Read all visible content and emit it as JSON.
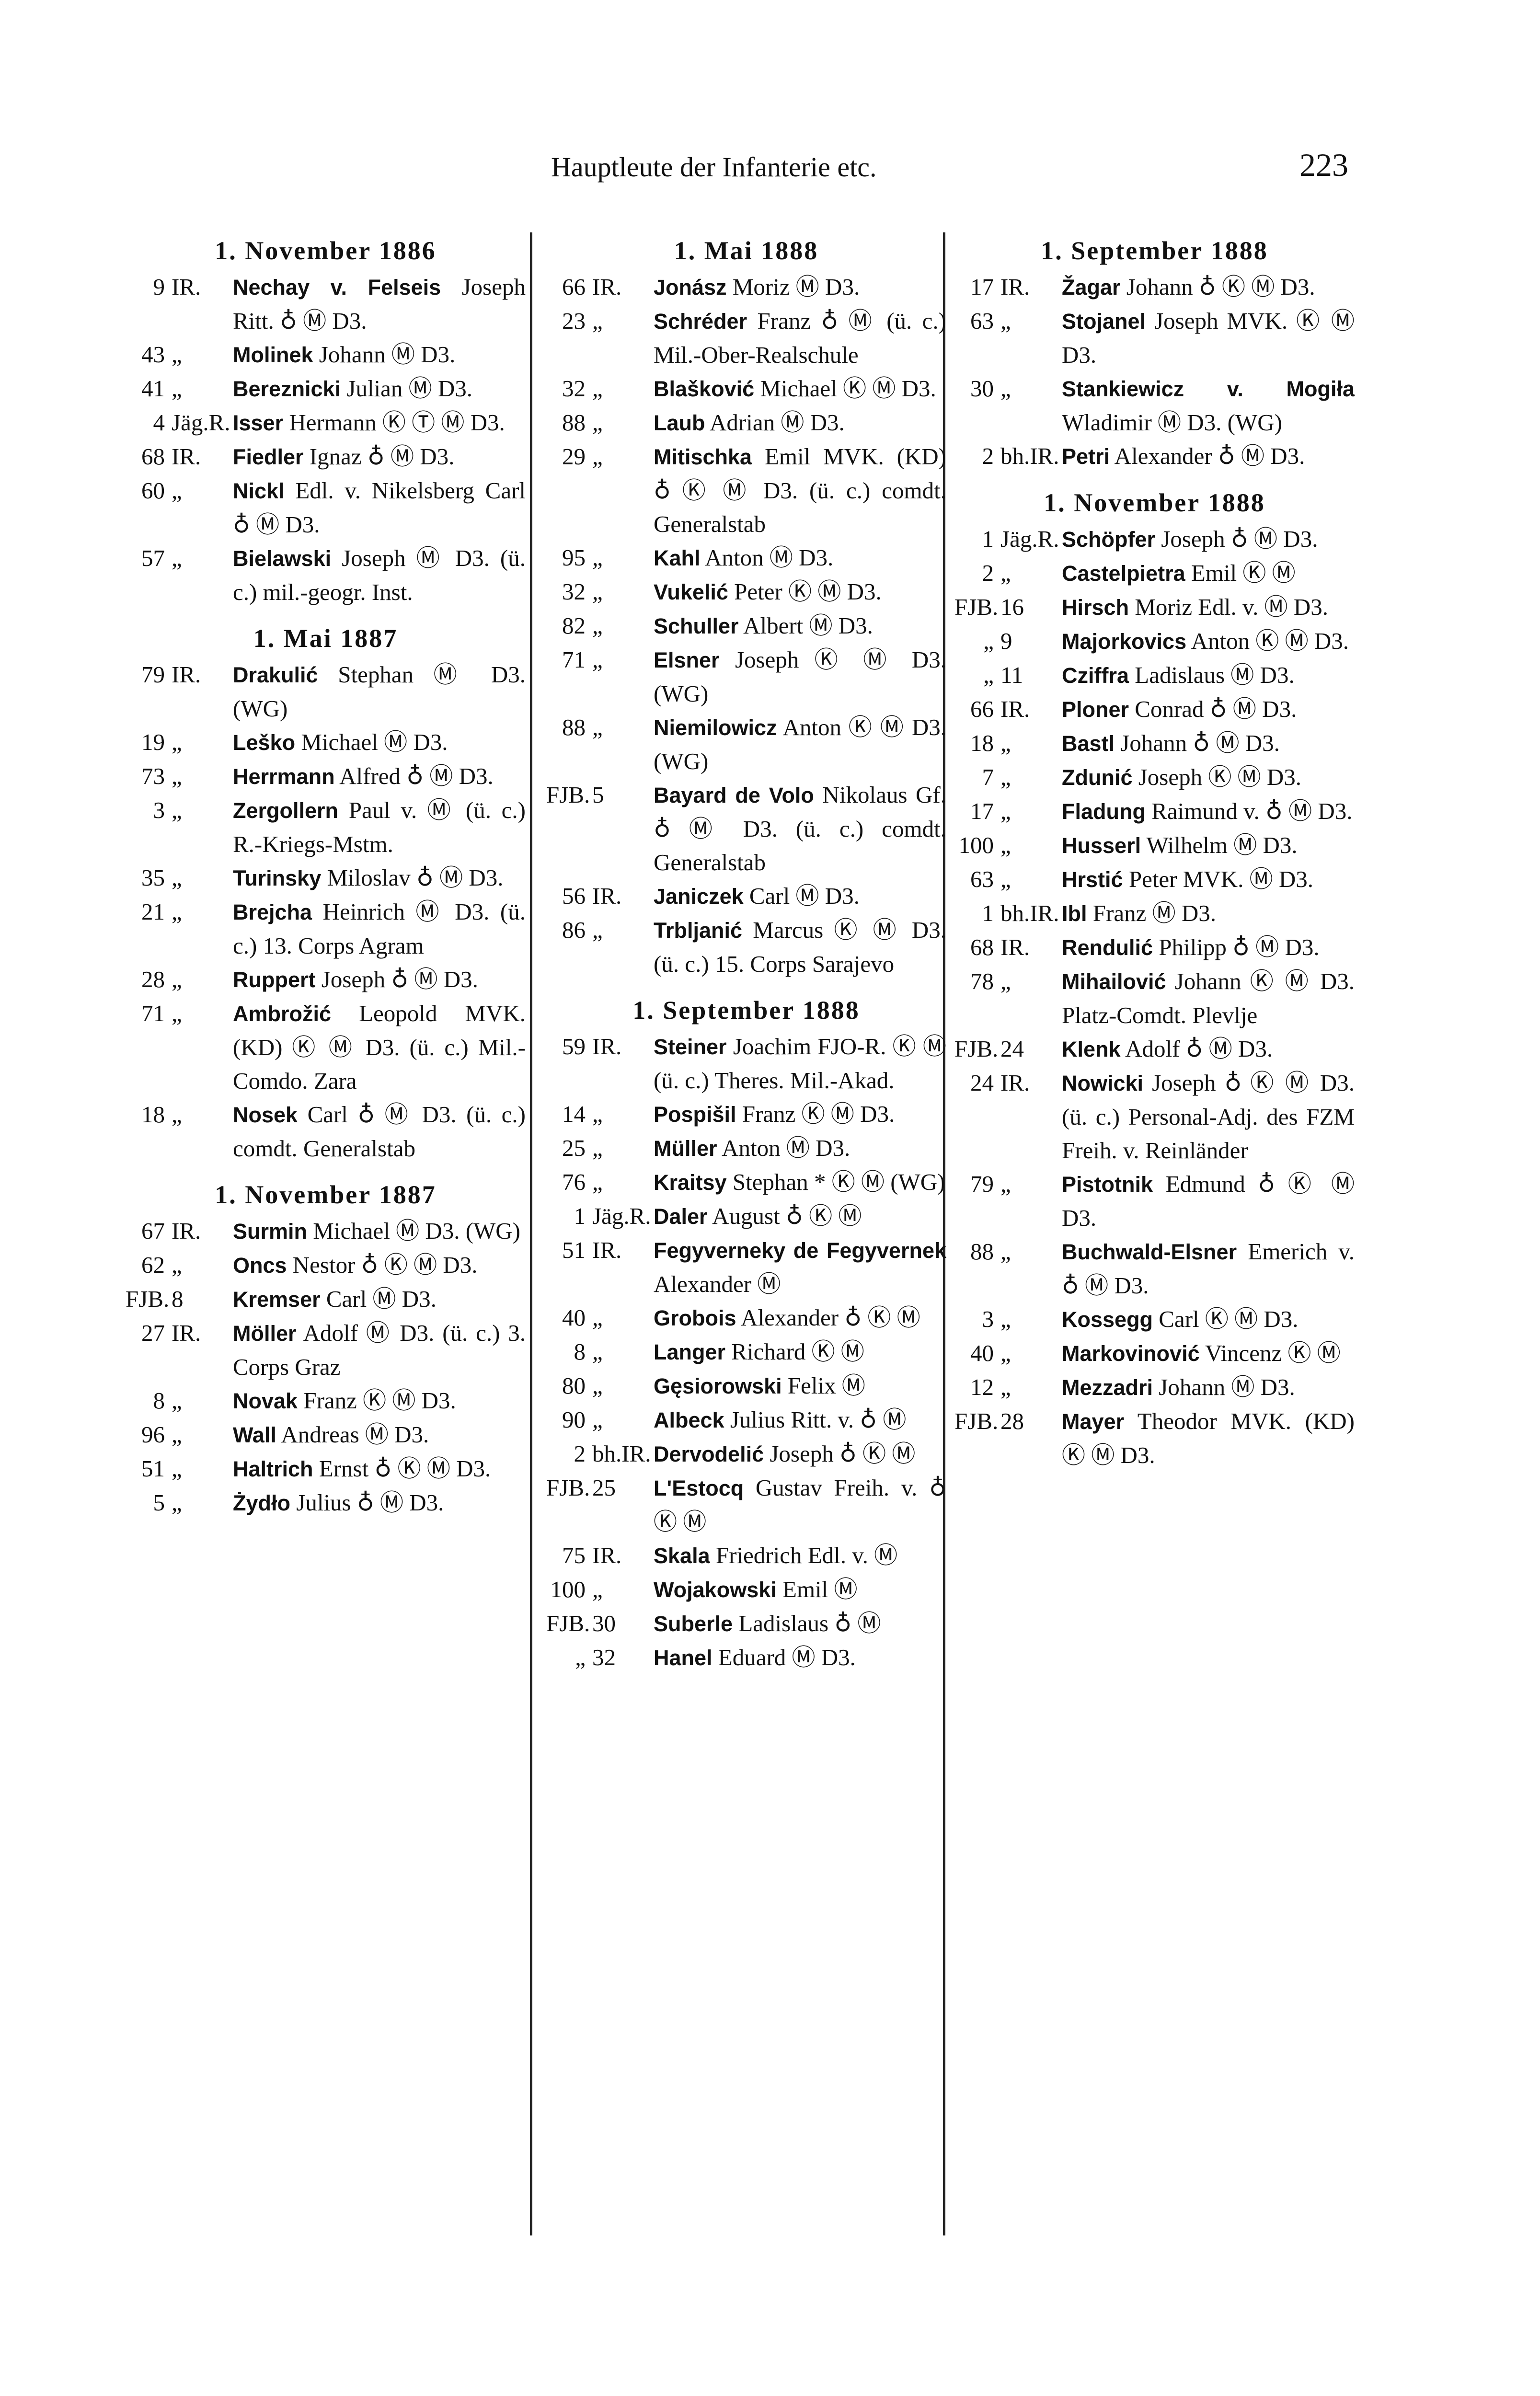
{
  "header": {
    "title": "Hauptleute der Infanterie etc.",
    "page_number": "223"
  },
  "columns": [
    [
      {
        "heading": "1. November 1886",
        "entries": [
          {
            "num": "9",
            "reg": "IR.",
            "name": "Nechay v. Felseis",
            "rest": "Joseph Ritt. ♁ Ⓜ D3."
          },
          {
            "num": "43",
            "reg": "„",
            "name": "Molinek",
            "rest": "Johann Ⓜ D3."
          },
          {
            "num": "41",
            "reg": "„",
            "name": "Bereznicki",
            "rest": "Julian Ⓜ D3."
          },
          {
            "num": "4",
            "reg": "Jäg.R.",
            "name": "Isser",
            "rest": "Hermann Ⓚ Ⓣ Ⓜ D3."
          },
          {
            "num": "68",
            "reg": "IR.",
            "name": "Fiedler",
            "rest": "Ignaz ♁ Ⓜ D3."
          },
          {
            "num": "60",
            "reg": "„",
            "name": "Nickl",
            "rest": "Edl. v. Nikelsberg Carl ♁ Ⓜ D3."
          },
          {
            "num": "57",
            "reg": "„",
            "name": "Bielawski",
            "rest": "Joseph Ⓜ D3. (ü. c.) mil.-geogr. Inst."
          }
        ]
      },
      {
        "heading": "1. Mai 1887",
        "entries": [
          {
            "num": "79",
            "reg": "IR.",
            "name": "Drakulić",
            "rest": "Stephan Ⓜ D3. (WG)"
          },
          {
            "num": "19",
            "reg": "„",
            "name": "Leško",
            "rest": "Michael Ⓜ D3."
          },
          {
            "num": "73",
            "reg": "„",
            "name": "Herrmann",
            "rest": "Alfred ♁ Ⓜ D3."
          },
          {
            "num": "3",
            "reg": "„",
            "name": "Zergollern",
            "rest": "Paul v. Ⓜ (ü. c.) R.-Kriegs-Mstm."
          },
          {
            "num": "35",
            "reg": "„",
            "name": "Turinsky",
            "rest": "Miloslav ♁ Ⓜ D3."
          },
          {
            "num": "21",
            "reg": "„",
            "name": "Brejcha",
            "rest": "Heinrich Ⓜ D3. (ü. c.) 13. Corps Agram"
          },
          {
            "num": "28",
            "reg": "„",
            "name": "Ruppert",
            "rest": "Joseph ♁ Ⓜ D3."
          },
          {
            "num": "71",
            "reg": "„",
            "name": "Ambrožić",
            "rest": "Leopold MVK. (KD) Ⓚ Ⓜ D3. (ü. c.) Mil.-Comdo. Zara"
          },
          {
            "num": "18",
            "reg": "„",
            "name": "Nosek",
            "rest": "Carl ♁ Ⓜ D3. (ü. c.) comdt. Generalstab"
          }
        ]
      },
      {
        "heading": "1. November 1887",
        "entries": [
          {
            "num": "67",
            "reg": "IR.",
            "name": "Surmin",
            "rest": "Michael Ⓜ D3. (WG)"
          },
          {
            "num": "62",
            "reg": "„",
            "name": "Oncs",
            "rest": "Nestor ♁ Ⓚ Ⓜ D3."
          },
          {
            "num": "FJB.",
            "reg": "8",
            "name": "Kremser",
            "rest": "Carl Ⓜ D3."
          },
          {
            "num": "27",
            "reg": "IR.",
            "name": "Möller",
            "rest": "Adolf Ⓜ D3. (ü. c.) 3. Corps Graz"
          },
          {
            "num": "8",
            "reg": "„",
            "name": "Novak",
            "rest": "Franz Ⓚ Ⓜ D3."
          },
          {
            "num": "96",
            "reg": "„",
            "name": "Wall",
            "rest": "Andreas Ⓜ D3."
          },
          {
            "num": "51",
            "reg": "„",
            "name": "Haltrich",
            "rest": "Ernst ♁ Ⓚ Ⓜ D3."
          },
          {
            "num": "5",
            "reg": "„",
            "name": "Żydło",
            "rest": "Julius ♁ Ⓜ D3."
          }
        ]
      }
    ],
    [
      {
        "heading": "1. Mai 1888",
        "entries": [
          {
            "num": "66",
            "reg": "IR.",
            "name": "Jonász",
            "rest": "Moriz Ⓜ D3."
          },
          {
            "num": "23",
            "reg": "„",
            "name": "Schréder",
            "rest": "Franz ♁ Ⓜ (ü. c.) Mil.-Ober-Realschule"
          },
          {
            "num": "32",
            "reg": "„",
            "name": "Blašković",
            "rest": "Michael Ⓚ Ⓜ D3."
          },
          {
            "num": "88",
            "reg": "„",
            "name": "Laub",
            "rest": "Adrian Ⓜ D3."
          },
          {
            "num": "29",
            "reg": "„",
            "name": "Mitischka",
            "rest": "Emil MVK. (KD) ♁ Ⓚ Ⓜ D3. (ü. c.) comdt. Generalstab"
          },
          {
            "num": "95",
            "reg": "„",
            "name": "Kahl",
            "rest": "Anton Ⓜ D3."
          },
          {
            "num": "32",
            "reg": "„",
            "name": "Vukelić",
            "rest": "Peter Ⓚ Ⓜ D3."
          },
          {
            "num": "82",
            "reg": "„",
            "name": "Schuller",
            "rest": "Albert Ⓜ D3."
          },
          {
            "num": "71",
            "reg": "„",
            "name": "Elsner",
            "rest": "Joseph Ⓚ Ⓜ D3. (WG)"
          },
          {
            "num": "88",
            "reg": "„",
            "name": "Niemilowicz",
            "rest": "Anton Ⓚ Ⓜ D3. (WG)"
          },
          {
            "num": "FJB.",
            "reg": "5",
            "name": "Bayard de Volo",
            "rest": "Nikolaus Gf. ♁ Ⓜ D3. (ü. c.) comdt. Generalstab"
          },
          {
            "num": "56",
            "reg": "IR.",
            "name": "Janiczek",
            "rest": "Carl Ⓜ D3."
          },
          {
            "num": "86",
            "reg": "„",
            "name": "Trbljanić",
            "rest": "Marcus Ⓚ Ⓜ D3. (ü. c.) 15. Corps Sarajevo"
          }
        ]
      },
      {
        "heading": "1. September 1888",
        "entries": [
          {
            "num": "59",
            "reg": "IR.",
            "name": "Steiner",
            "rest": "Joachim FJO-R. Ⓚ Ⓜ (ü. c.) Theres. Mil.-Akad."
          },
          {
            "num": "14",
            "reg": "„",
            "name": "Pospišil",
            "rest": "Franz Ⓚ Ⓜ D3."
          },
          {
            "num": "25",
            "reg": "„",
            "name": "Müller",
            "rest": "Anton Ⓜ D3."
          },
          {
            "num": "76",
            "reg": "„",
            "name": "Kraitsy",
            "rest": "Stephan * Ⓚ Ⓜ (WG)"
          },
          {
            "num": "1",
            "reg": "Jäg.R.",
            "name": "Daler",
            "rest": "August ♁ Ⓚ Ⓜ"
          },
          {
            "num": "51",
            "reg": "IR.",
            "name": "Fegyverneky de Fegyvernek",
            "rest": "Alexander Ⓜ"
          },
          {
            "num": "40",
            "reg": "„",
            "name": "Grobois",
            "rest": "Alexander ♁ Ⓚ Ⓜ"
          },
          {
            "num": "8",
            "reg": "„",
            "name": "Langer",
            "rest": "Richard Ⓚ Ⓜ"
          },
          {
            "num": "80",
            "reg": "„",
            "name": "Gęsiorowski",
            "rest": "Felix Ⓜ"
          },
          {
            "num": "90",
            "reg": "„",
            "name": "Albeck",
            "rest": "Julius Ritt. v. ♁ Ⓜ"
          },
          {
            "num": "2",
            "reg": "bh.IR.",
            "name": "Dervodelić",
            "rest": "Joseph ♁ Ⓚ Ⓜ"
          },
          {
            "num": "FJB.",
            "reg": "25",
            "name": "L'Estocq",
            "rest": "Gustav Freih. v. ♁ Ⓚ Ⓜ"
          },
          {
            "num": "75",
            "reg": "IR.",
            "name": "Skala",
            "rest": "Friedrich Edl. v. Ⓜ"
          },
          {
            "num": "100",
            "reg": "„",
            "name": "Wojakowski",
            "rest": "Emil Ⓜ"
          },
          {
            "num": "FJB.",
            "reg": "30",
            "name": "Suberle",
            "rest": "Ladislaus ♁ Ⓜ"
          },
          {
            "num": "„",
            "reg": "32",
            "name": "Hanel",
            "rest": "Eduard Ⓜ D3."
          }
        ]
      }
    ],
    [
      {
        "heading": "1. September 1888",
        "entries": [
          {
            "num": "17",
            "reg": "IR.",
            "name": "Žagar",
            "rest": "Johann ♁ Ⓚ Ⓜ D3."
          },
          {
            "num": "63",
            "reg": "„",
            "name": "Stojanel",
            "rest": "Joseph MVK. Ⓚ Ⓜ D3."
          },
          {
            "num": "30",
            "reg": "„",
            "name": "Stankiewicz v. Mogiła",
            "rest": "Wladimir Ⓜ D3. (WG)"
          },
          {
            "num": "2",
            "reg": "bh.IR.",
            "name": "Petri",
            "rest": "Alexander ♁ Ⓜ D3."
          }
        ]
      },
      {
        "heading": "1. November 1888",
        "entries": [
          {
            "num": "1",
            "reg": "Jäg.R.",
            "name": "Schöpfer",
            "rest": "Joseph ♁ Ⓜ D3."
          },
          {
            "num": "2",
            "reg": "„",
            "name": "Castelpietra",
            "rest": "Emil Ⓚ Ⓜ"
          },
          {
            "num": "FJB.",
            "reg": "16",
            "name": "Hirsch",
            "rest": "Moriz Edl. v. Ⓜ D3."
          },
          {
            "num": "„",
            "reg": "9",
            "name": "Majorkovics",
            "rest": "Anton Ⓚ Ⓜ D3."
          },
          {
            "num": "„",
            "reg": "11",
            "name": "Cziffra",
            "rest": "Ladislaus Ⓜ D3."
          },
          {
            "num": "66",
            "reg": "IR.",
            "name": "Ploner",
            "rest": "Conrad ♁ Ⓜ D3."
          },
          {
            "num": "18",
            "reg": "„",
            "name": "Bastl",
            "rest": "Johann ♁ Ⓜ D3."
          },
          {
            "num": "7",
            "reg": "„",
            "name": "Zdunić",
            "rest": "Joseph Ⓚ Ⓜ D3."
          },
          {
            "num": "17",
            "reg": "„",
            "name": "Fladung",
            "rest": "Raimund v. ♁ Ⓜ D3."
          },
          {
            "num": "100",
            "reg": "„",
            "name": "Husserl",
            "rest": "Wilhelm Ⓜ D3."
          },
          {
            "num": "63",
            "reg": "„",
            "name": "Hrstić",
            "rest": "Peter MVK. Ⓜ D3."
          },
          {
            "num": "1",
            "reg": "bh.IR.",
            "name": "Ibl",
            "rest": "Franz Ⓜ D3."
          },
          {
            "num": "68",
            "reg": "IR.",
            "name": "Rendulić",
            "rest": "Philipp ♁ Ⓜ D3."
          },
          {
            "num": "78",
            "reg": "„",
            "name": "Mihailović",
            "rest": "Johann Ⓚ Ⓜ D3. Platz-Comdt. Plevlje"
          },
          {
            "num": "FJB.",
            "reg": "24",
            "name": "Klenk",
            "rest": "Adolf ♁ Ⓜ D3."
          },
          {
            "num": "24",
            "reg": "IR.",
            "name": "Nowicki",
            "rest": "Joseph ♁ Ⓚ Ⓜ D3. (ü. c.) Personal-Adj. des FZM Freih. v. Reinländer"
          },
          {
            "num": "79",
            "reg": "„",
            "name": "Pistotnik",
            "rest": "Edmund ♁ Ⓚ Ⓜ D3."
          },
          {
            "num": "88",
            "reg": "„",
            "name": "Buchwald-Elsner",
            "rest": "Emerich v. ♁ Ⓜ D3."
          },
          {
            "num": "3",
            "reg": "„",
            "name": "Kossegg",
            "rest": "Carl Ⓚ Ⓜ D3."
          },
          {
            "num": "40",
            "reg": "„",
            "name": "Markovinović",
            "rest": "Vincenz Ⓚ Ⓜ"
          },
          {
            "num": "12",
            "reg": "„",
            "name": "Mezzadri",
            "rest": "Johann Ⓜ D3."
          },
          {
            "num": "FJB.",
            "reg": "28",
            "name": "Mayer",
            "rest": "Theodor MVK. (KD) Ⓚ Ⓜ D3."
          }
        ]
      }
    ]
  ]
}
